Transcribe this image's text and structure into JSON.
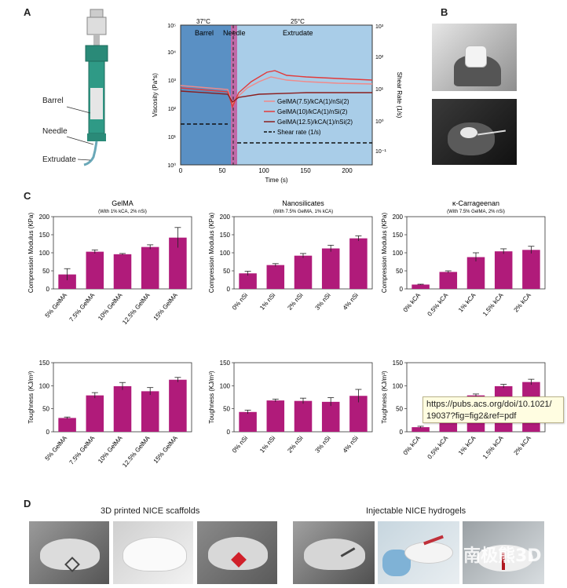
{
  "panels": {
    "a": "A",
    "b": "B",
    "c": "C",
    "d": "D"
  },
  "schematic": {
    "barrel": "Barrel",
    "needle": "Needle",
    "extrudate": "Extrudate"
  },
  "rheology": {
    "zones": [
      "37°C",
      "25°C",
      "Barrel",
      "Needle",
      "Extrudate"
    ],
    "xlabel": "Time (s)",
    "ylabel": "Viscosity (Pa*s)",
    "y2label": "Shear Rate (1/s)",
    "xticks": [
      "0",
      "50",
      "100",
      "150",
      "200"
    ],
    "yticks": [
      "10⁰",
      "10¹",
      "10²",
      "10³",
      "10⁴",
      "10⁵"
    ],
    "y2ticks": [
      "10⁻¹",
      "10⁰",
      "10¹",
      "10²",
      "10³"
    ],
    "legend": [
      "GelMA(7.5)/kCA(1)/nSi(2)",
      "GelMA(10)/kCA(1)/nSi(2)",
      "GelMA(12.5)/kCA(1)/nSi(2)",
      "Shear rate (1/s)"
    ],
    "colors": [
      "#f08a8a",
      "#e23a3a",
      "#8b1e1e",
      "#111111"
    ]
  },
  "chart_data": [
    {
      "type": "bar",
      "title": "GelMA",
      "subtitle": "(With 1% kCA, 2% nSi)",
      "ylabel": "Compression Modulus (KPa)",
      "ylim": [
        0,
        200
      ],
      "yticks": [
        "0",
        "50",
        "100",
        "150",
        "200"
      ],
      "categories": [
        "5% GelMA",
        "7.5% GelMA",
        "10% GelMA",
        "12.5% GelMA",
        "15% GelMA"
      ],
      "values": [
        40,
        103,
        96,
        116,
        142
      ],
      "errors": [
        16,
        5,
        2,
        6,
        28
      ]
    },
    {
      "type": "bar",
      "title": "Nanosilicates",
      "subtitle": "(With 7.5% GelMA, 1% kCA)",
      "ylabel": "Compression Modulus (KPa)",
      "ylim": [
        0,
        200
      ],
      "yticks": [
        "0",
        "50",
        "100",
        "150",
        "200"
      ],
      "categories": [
        "0% nSi",
        "1% nSi",
        "2% nSi",
        "3% nSi",
        "4% nSi"
      ],
      "values": [
        43,
        66,
        92,
        112,
        140
      ],
      "errors": [
        6,
        4,
        6,
        9,
        7
      ]
    },
    {
      "type": "bar",
      "title": "κ-Carrageenan",
      "subtitle": "(With 7.5% GelMA, 2% nSi)",
      "ylabel": "Compression Modulus (KPa)",
      "ylim": [
        0,
        200
      ],
      "yticks": [
        "0",
        "50",
        "100",
        "150",
        "200"
      ],
      "categories": [
        "0% kCA",
        "0.5% kCA",
        "1% kCA",
        "1.5% kCA",
        "2% kCA"
      ],
      "values": [
        12,
        47,
        88,
        104,
        108
      ],
      "errors": [
        1,
        3,
        12,
        7,
        10
      ]
    },
    {
      "type": "bar",
      "ylabel": "Toughness (KJ/m³)",
      "ylim": [
        0,
        150
      ],
      "yticks": [
        "0",
        "50",
        "100",
        "150"
      ],
      "categories": [
        "5% GelMA",
        "7.5% GelMA",
        "10% GelMA",
        "12.5% GelMA",
        "15% GelMA"
      ],
      "values": [
        30,
        79,
        99,
        88,
        113
      ],
      "errors": [
        2,
        6,
        8,
        8,
        5
      ]
    },
    {
      "type": "bar",
      "ylabel": "Toughness (KJ/m³)",
      "ylim": [
        0,
        150
      ],
      "yticks": [
        "0",
        "50",
        "100",
        "150"
      ],
      "categories": [
        "0% nSi",
        "1% nSi",
        "2% nSi",
        "3% nSi",
        "4% nSi"
      ],
      "values": [
        43,
        68,
        67,
        65,
        78
      ],
      "errors": [
        4,
        3,
        6,
        9,
        14
      ]
    },
    {
      "type": "bar",
      "ylabel": "Toughness (KJ/m³)",
      "ylim": [
        0,
        150
      ],
      "yticks": [
        "0",
        "50",
        "100",
        "150"
      ],
      "categories": [
        "0% kCA",
        "0.5% kCA",
        "1% kCA",
        "1.5% kCA",
        "2% kCA"
      ],
      "values": [
        10,
        55,
        79,
        99,
        108
      ],
      "errors": [
        2,
        3,
        3,
        4,
        6
      ]
    }
  ],
  "tooltip": {
    "line1": "https://pubs.acs.org/doi/10.1021/",
    "line2": "19037?fig=fig2&ref=pdf"
  },
  "panel_d": {
    "left_caption": "3D printed NICE scaffolds",
    "right_caption": "Injectable NICE hydrogels",
    "watermark": "南极熊3D"
  }
}
